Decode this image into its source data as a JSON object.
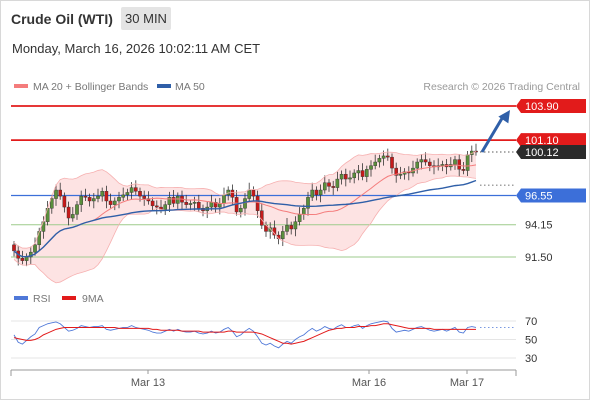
{
  "header": {
    "instrument": "Crude Oil (WTI)",
    "timeframe": "30 MIN",
    "datetime": "Monday, March 16, 2026 10:02:11 AM CET"
  },
  "legend": {
    "ma20": "MA 20 + Bollinger Bands",
    "ma50": "MA 50",
    "credit": "Research © 2026 Trading Central"
  },
  "rsi_legend": {
    "rsi": "RSI",
    "ma": "9MA"
  },
  "colors": {
    "resistance": "#e21b1b",
    "support": "#3c6fd9",
    "target_arrow": "#2f5fa8",
    "pivot_line": "#3c6fd9",
    "support_green": "#9ecb8c",
    "ma20_bb": "#f47c7c",
    "ma50": "#2f5fa8",
    "candle_up": "#5a8f3c",
    "candle_down": "#c51a1a",
    "rsi": "#4f78d8",
    "rsi_ma": "#e21b1b"
  },
  "chart_data": {
    "type": "candlestick",
    "x_tick_labels": [
      "Mar 13",
      "Mar 16",
      "Mar 17"
    ],
    "y_tick_labels": [
      "103.90",
      "101.10",
      "100.12",
      "96.55",
      "94.15",
      "91.50"
    ],
    "ylim": [
      88.3,
      104.8
    ],
    "levels": [
      {
        "value": 103.9,
        "label": "103.90",
        "kind": "resistance"
      },
      {
        "value": 101.1,
        "label": "101.10",
        "kind": "resistance"
      },
      {
        "value": 100.12,
        "label": "100.12",
        "kind": "last"
      },
      {
        "value": 96.55,
        "label": "96.55",
        "kind": "pivot"
      },
      {
        "value": 94.15,
        "label": "94.15",
        "kind": "support"
      },
      {
        "value": 91.5,
        "label": "91.50",
        "kind": "support"
      }
    ],
    "close": [
      92.0,
      91.4,
      91.2,
      91.5,
      91.9,
      92.5,
      93.6,
      94.4,
      95.5,
      96.3,
      97.0,
      96.5,
      95.6,
      94.7,
      95.0,
      95.8,
      96.5,
      96.4,
      96.1,
      96.3,
      96.5,
      96.9,
      96.1,
      95.8,
      96.1,
      96.4,
      96.6,
      96.8,
      97.2,
      96.9,
      96.5,
      96.3,
      96.1,
      95.7,
      95.6,
      95.4,
      95.8,
      96.4,
      95.9,
      96.5,
      96.0,
      95.8,
      95.9,
      96.0,
      95.5,
      95.3,
      95.6,
      96.0,
      95.6,
      95.9,
      96.6,
      97.0,
      96.4,
      95.2,
      95.5,
      96.3,
      97.0,
      96.5,
      95.3,
      94.1,
      93.6,
      93.9,
      93.3,
      93.0,
      93.6,
      94.1,
      93.8,
      94.4,
      95.0,
      95.5,
      96.4,
      97.0,
      96.6,
      97.0,
      97.6,
      97.3,
      97.2,
      97.9,
      98.3,
      97.9,
      98.0,
      98.4,
      98.6,
      98.1,
      98.7,
      99.0,
      99.3,
      99.6,
      99.8,
      99.7,
      98.8,
      98.2,
      98.3,
      98.5,
      98.4,
      98.8,
      99.3,
      99.5,
      99.3,
      99.0,
      98.9,
      99.0,
      99.1,
      98.9,
      99.1,
      99.5,
      98.7,
      98.6,
      99.9,
      100.2,
      100.12
    ],
    "candles": 111,
    "overlays": [
      {
        "name": "MA 20",
        "type": "line"
      },
      {
        "name": "Bollinger Bands",
        "type": "band"
      },
      {
        "name": "MA 50",
        "type": "line"
      }
    ],
    "forecast_arrow": {
      "from": 100.12,
      "to": 103.9
    },
    "rsi": {
      "levels": [
        70,
        50,
        30
      ],
      "series": [
        {
          "name": "RSI",
          "values": [
            55,
            47,
            45,
            49,
            53,
            56,
            63,
            65,
            67,
            68,
            69,
            67,
            63,
            59,
            60,
            62,
            65,
            64,
            63,
            64,
            64,
            65,
            61,
            60,
            61,
            62,
            63,
            63,
            65,
            63,
            62,
            61,
            60,
            58,
            57,
            57,
            59,
            61,
            59,
            61,
            59,
            58,
            58,
            59,
            57,
            56,
            57,
            59,
            57,
            58,
            61,
            63,
            59,
            53,
            55,
            59,
            62,
            59,
            53,
            46,
            44,
            46,
            43,
            41,
            45,
            48,
            46,
            50,
            53,
            55,
            59,
            62,
            59,
            61,
            64,
            62,
            61,
            64,
            66,
            63,
            63,
            65,
            66,
            62,
            65,
            67,
            68,
            69,
            70,
            69,
            62,
            58,
            59,
            60,
            59,
            61,
            63,
            64,
            62,
            60,
            59,
            60,
            61,
            59,
            61,
            63,
            58,
            57,
            63,
            64,
            63
          ]
        },
        {
          "name": "9MA",
          "values": [
            52,
            51,
            50,
            49,
            49,
            50,
            52,
            55,
            57,
            59,
            61,
            62,
            63,
            63,
            63,
            63,
            63,
            63,
            63,
            63,
            63,
            63,
            63,
            63,
            63,
            62,
            62,
            62,
            62,
            62,
            62,
            62,
            62,
            61,
            61,
            60,
            60,
            60,
            60,
            60,
            59,
            59,
            59,
            59,
            59,
            58,
            58,
            58,
            58,
            58,
            58,
            59,
            59,
            58,
            58,
            58,
            58,
            58,
            57,
            56,
            54,
            52,
            50,
            48,
            46,
            46,
            45,
            46,
            47,
            48,
            50,
            52,
            54,
            56,
            58,
            60,
            61,
            62,
            62,
            63,
            63,
            63,
            64,
            64,
            64,
            65,
            65,
            66,
            67,
            67,
            66,
            65,
            64,
            63,
            62,
            62,
            62,
            62,
            62,
            62,
            61,
            61,
            61,
            61,
            61,
            61,
            61,
            61,
            61,
            61,
            61
          ]
        }
      ]
    }
  }
}
